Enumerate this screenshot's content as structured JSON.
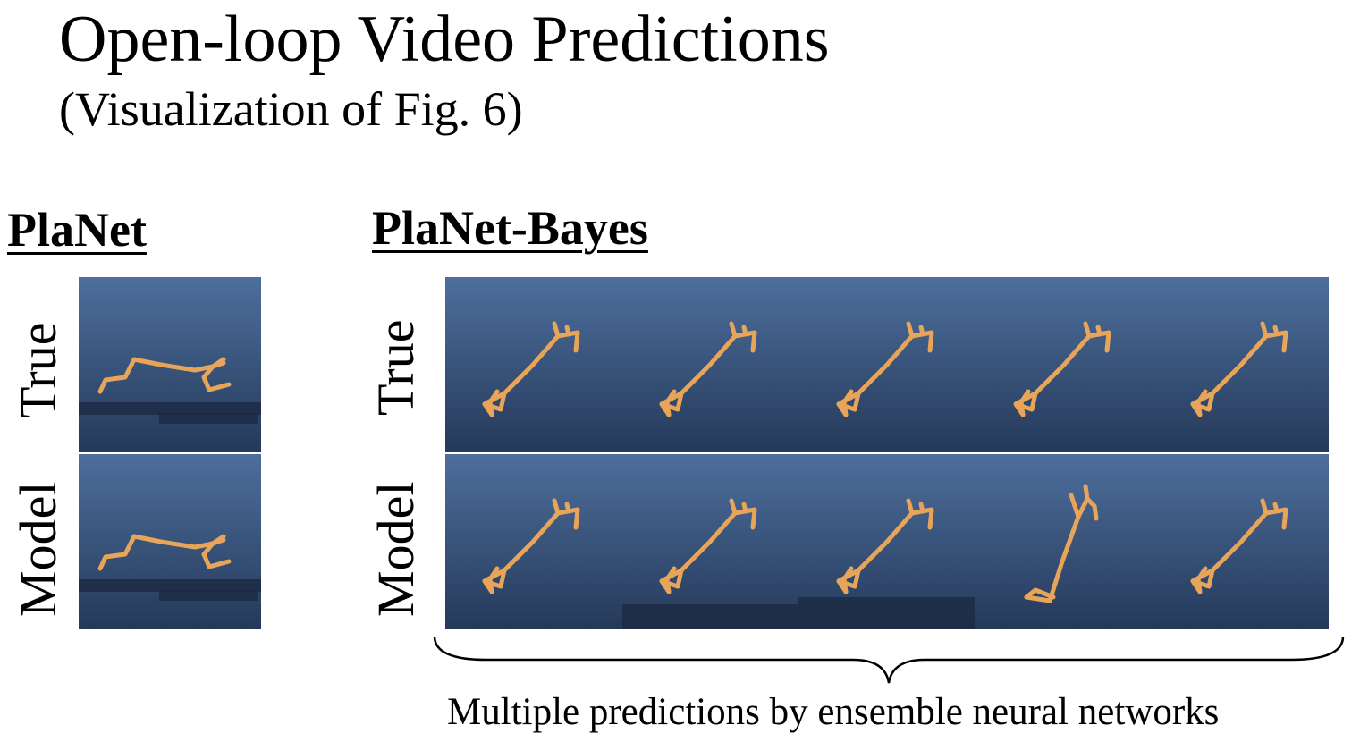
{
  "slide": {
    "title": "Open-loop Video Predictions",
    "subtitle": "(Visualization of Fig. 6)"
  },
  "planet": {
    "heading": "PlaNet",
    "row_true_label": "True",
    "row_model_label": "Model"
  },
  "planet_bayes": {
    "heading": "PlaNet-Bayes",
    "row_true_label": "True",
    "row_model_label": "Model",
    "prediction_count": 5
  },
  "caption": "Multiple predictions by ensemble neural networks",
  "colors": {
    "sky_top": "#4a6c99",
    "sky_bottom": "#263a58",
    "robot": "#e8a55a",
    "background": "#ffffff"
  },
  "icons": {
    "brace": "curly-brace-icon",
    "robot": "walker-robot-icon"
  }
}
